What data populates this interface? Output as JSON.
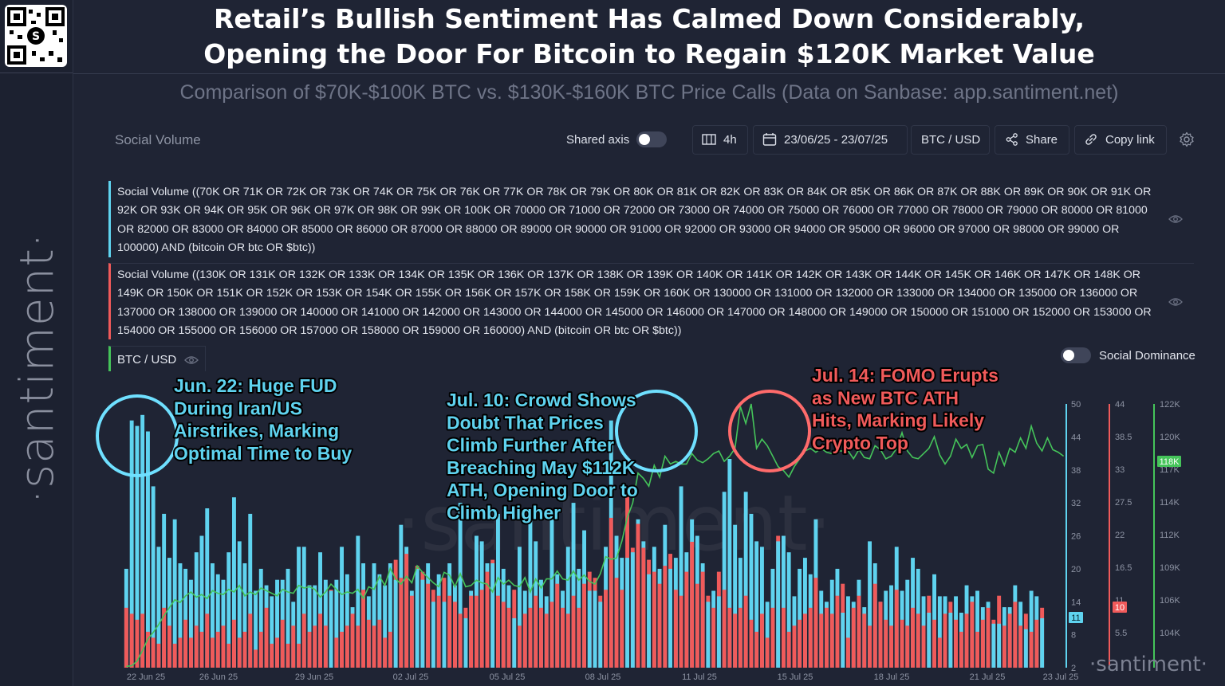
{
  "header": {
    "title_line1": "Retail’s Bullish Sentiment Has Calmed Down Considerably,",
    "title_line2": "Opening the Door For Bitcoin to Regain $120K Market Value",
    "subtitle": "Comparison of $70K-$100K BTC vs. $130K-$160K BTC Price Calls (Data on Sanbase: app.santiment.net)"
  },
  "brand": {
    "sidebar_logo": "·santiment·",
    "chart_watermark": "·santiment·",
    "footer_logo": "·santiment·"
  },
  "toolbar": {
    "panel_label": "Social Volume",
    "shared_axis_label": "Shared axis",
    "interval": "4h",
    "date_range": "23/06/25 - 23/07/25",
    "pair": "BTC / USD",
    "share_label": "Share",
    "copy_link_label": "Copy link"
  },
  "metrics": [
    {
      "label": "Social Volume ((70K OR 71K OR 72K OR 73K OR 74K OR 75K OR 76K OR 77K OR 78K OR 79K OR 80K OR 81K OR 82K OR 83K OR 84K OR 85K OR 86K OR 87K OR 88K OR 89K OR 90K OR 91K OR 92K OR 93K OR 94K OR 95K OR 96K OR 97K OR 98K OR 99K OR 100K OR 70000 OR 71000 OR 72000 OR 73000 OR 74000 OR 75000 OR 76000 OR 77000 OR 78000 OR 79000 OR 80000 OR 81000 OR 82000 OR 83000 OR 84000 OR 85000 OR 86000 OR 87000 OR 88000 OR 89000 OR 90000 OR 91000 OR 92000 OR 93000 OR 94000 OR 95000 OR 96000 OR 97000 OR 98000 OR 99000 OR 100000) AND (bitcoin OR btc OR $btc))",
      "color": "#5fd3ef"
    },
    {
      "label": "Social Volume ((130K OR 131K OR 132K OR 133K OR 134K OR 135K OR 136K OR 137K OR 138K OR 139K OR 140K OR 141K OR 142K OR 143K OR 144K OR 145K OR 146K OR 147K OR 148K OR 149K OR 150K OR 151K OR 152K OR 153K OR 154K OR 155K OR 156K OR 157K OR 158K OR 159K OR 160K OR 130000 OR 131000 OR 132000 OR 133000 OR 134000 OR 135000 OR 136000 OR 137000 OR 138000 OR 139000 OR 140000 OR 141000 OR 142000 OR 143000 OR 144000 OR 145000 OR 146000 OR 147000 OR 148000 OR 149000 OR 150000 OR 151000 OR 152000 OR 153000 OR 154000 OR 155000 OR 156000 OR 157000 OR 158000 OR 159000 OR 160000) AND (bitcoin OR btc OR $btc))",
      "color": "#f05a5a"
    },
    {
      "label": "BTC / USD",
      "color": "#45c45a"
    }
  ],
  "social_dominance_label": "Social Dominance",
  "chart_data": {
    "type": "bar",
    "x_tick_labels": [
      "22 Jun 25",
      "26 Jun 25",
      "29 Jun 25",
      "02 Jul 25",
      "05 Jul 25",
      "08 Jul 25",
      "11 Jul 25",
      "15 Jul 25",
      "18 Jul 25",
      "21 Jul 25",
      "23 Jul 25"
    ],
    "axes": [
      {
        "series": "cyan",
        "color": "#5fd3ef",
        "ticks": [
          "50",
          "44",
          "38",
          "32",
          "26",
          "20",
          "14",
          "8",
          "2"
        ],
        "ylim": [
          2,
          50
        ],
        "current_value": "11"
      },
      {
        "series": "red",
        "color": "#f05a5a",
        "ticks": [
          "44",
          "38.5",
          "33",
          "27.5",
          "22",
          "16.5",
          "11",
          "5.5"
        ],
        "ylim": [
          0,
          44
        ],
        "current_value": "10"
      },
      {
        "series": "green",
        "color": "#45c45a",
        "ticks": [
          "122K",
          "120K",
          "117K",
          "114K",
          "112K",
          "109K",
          "106K",
          "104K"
        ],
        "ylim": [
          101800,
          122000
        ],
        "current_value": "118K"
      }
    ],
    "series": [
      {
        "key": "cyan",
        "values": [
          20,
          47,
          46,
          48,
          45,
          35,
          24,
          30,
          22,
          29,
          21,
          20,
          18,
          23,
          26,
          31,
          21,
          19,
          18,
          23,
          33,
          25,
          21,
          30,
          16,
          20,
          17,
          15,
          18,
          18,
          20,
          14,
          24,
          24,
          17,
          17,
          23,
          18,
          16,
          18,
          24,
          19,
          13,
          26,
          21,
          15,
          21,
          19,
          17,
          21,
          18,
          28,
          24,
          16,
          20,
          18,
          21,
          14,
          19,
          14,
          21,
          17,
          32,
          11,
          16,
          26,
          25,
          21,
          21,
          30,
          20,
          17,
          11,
          24,
          16,
          30,
          25,
          18,
          15,
          29,
          19,
          16,
          24,
          32,
          20,
          27,
          16,
          16,
          14,
          24,
          47,
          26,
          22,
          22,
          23,
          29,
          25,
          19,
          24,
          20,
          28,
          20,
          22,
          35,
          23,
          29,
          26,
          21,
          14,
          16,
          15,
          34,
          40,
          28,
          22,
          34,
          30,
          25,
          24,
          14,
          20,
          25,
          26,
          23,
          15,
          20,
          22,
          19,
          29,
          16,
          14,
          18,
          20,
          12,
          15,
          14,
          18,
          13,
          25,
          21,
          14,
          16,
          17,
          24,
          16,
          18,
          22,
          20,
          15,
          12,
          19,
          15,
          15,
          12,
          15,
          12,
          17,
          15,
          16,
          13,
          14,
          10,
          10,
          13,
          13,
          17,
          14,
          9,
          16,
          15,
          11
        ],
        "color": "#5fd3ef"
      },
      {
        "key": "red",
        "values": [
          10,
          9,
          8,
          9,
          6,
          5,
          4,
          10,
          7,
          4,
          5,
          8,
          5,
          7,
          6,
          9,
          5,
          6,
          7,
          4,
          8,
          5,
          6,
          9,
          3,
          6,
          10,
          4,
          5,
          8,
          4,
          7,
          4,
          9,
          6,
          7,
          9,
          7,
          13,
          5,
          6,
          7,
          9,
          7,
          13,
          8,
          7,
          8,
          5,
          6,
          18,
          15,
          19,
          12,
          17,
          16,
          14,
          13,
          12,
          15,
          12,
          11,
          9,
          10,
          12,
          12,
          13,
          16,
          18,
          12,
          11,
          10,
          13,
          7,
          9,
          10,
          12,
          10,
          9,
          11,
          14,
          10,
          9,
          12,
          10,
          14,
          16,
          15,
          12,
          13,
          25,
          15,
          13,
          29,
          20,
          24,
          20,
          18,
          16,
          14,
          17,
          19,
          13,
          12,
          16,
          21,
          14,
          16,
          12,
          10,
          16,
          13,
          10,
          9,
          10,
          12,
          8,
          6,
          9,
          5,
          10,
          22,
          10,
          6,
          7,
          8,
          9,
          10,
          15,
          9,
          10,
          9,
          12,
          14,
          5,
          10,
          12,
          9,
          7,
          14,
          11,
          8,
          7,
          13,
          8,
          7,
          10,
          9,
          7,
          12,
          8,
          5,
          9,
          11,
          8,
          6,
          9,
          11,
          6,
          8,
          10,
          8,
          12,
          7,
          9,
          11,
          7,
          9,
          6,
          8,
          10
        ],
        "color": "#f05a5a"
      },
      {
        "key": "green",
        "values": [
          101900,
          101950,
          102300,
          103100,
          104000,
          104500,
          105100,
          105800,
          106400,
          107000,
          106800,
          107300,
          107600,
          107200,
          107400,
          107100,
          107700,
          107500,
          107400,
          107800,
          107600,
          108100,
          107300,
          107600,
          107400,
          107900,
          107700,
          107500,
          107300,
          107800,
          107600,
          107500,
          108100,
          107900,
          108000,
          107800,
          107200,
          107600,
          108200,
          107800,
          107400,
          107600,
          107500,
          107800,
          107100,
          108000,
          107800,
          108800,
          108100,
          109400,
          108600,
          108200,
          108800,
          108300,
          109600,
          109100,
          108700,
          108300,
          108000,
          109100,
          108900,
          108000,
          109000,
          108000,
          108100,
          108500,
          108300,
          108200,
          107600,
          108700,
          108200,
          108500,
          108100,
          108000,
          108700,
          107600,
          108600,
          107900,
          108600,
          108600,
          109200,
          108600,
          108500,
          109200,
          108500,
          108900,
          108400,
          108200,
          109000,
          110300,
          110100,
          110200,
          111500,
          113300,
          114400,
          116700,
          116300,
          115700,
          117300,
          116400,
          118000,
          117400,
          117600,
          117400,
          117400,
          118200,
          117700,
          117500,
          117800,
          118200,
          118400,
          117600,
          118000,
          118600,
          121800,
          120500,
          122000,
          118600,
          119300,
          118800,
          118000,
          117200,
          116900,
          116400,
          117200,
          117800,
          118400,
          118600,
          118300,
          118600,
          118300,
          118200,
          118400,
          118400,
          118400,
          117800,
          118500,
          117900,
          117800,
          118800,
          118500,
          117800,
          118000,
          118600,
          119800,
          118400,
          117900,
          117800,
          118200,
          118600,
          119500,
          118100,
          117400,
          118000,
          119300,
          118600,
          118900,
          117900,
          118800,
          118900,
          117000,
          116700,
          118300,
          117300,
          118600,
          118300,
          119400,
          118600,
          120300,
          119000,
          118400,
          119400,
          118500,
          118300,
          118000
        ],
        "color": "#45c45a"
      }
    ],
    "annotations": [
      {
        "lines": [
          "Jun. 22: Huge FUD",
          "During Iran/US",
          "Airstrikes, Marking",
          "Optimal Time to Buy"
        ],
        "color": "#5fd3ef"
      },
      {
        "lines": [
          "Jul. 10: Crowd Shows",
          "Doubt That Prices",
          "Climb Further After",
          "Breaching May $112K",
          "ATH, Opening Door to",
          "Climb Higher"
        ],
        "color": "#5fd3ef"
      },
      {
        "lines": [
          "Jul. 14: FOMO Erupts",
          "as New BTC ATH",
          "Hits, Marking Likely",
          "Crypto Top"
        ],
        "color": "#f05a5a"
      }
    ]
  }
}
